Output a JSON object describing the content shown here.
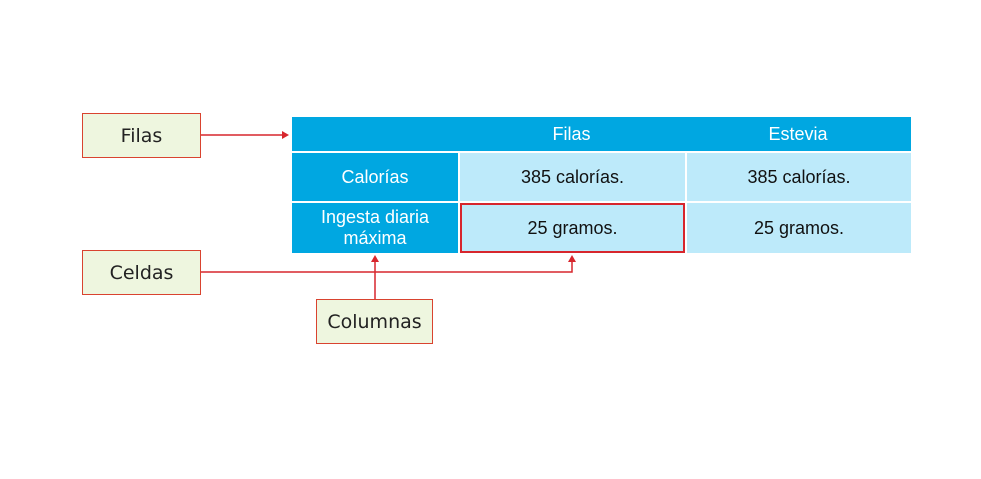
{
  "callouts": {
    "rows_label": "Filas",
    "cells_label": "Celdas",
    "columns_label": "Columnas"
  },
  "table": {
    "header": [
      "",
      "Filas",
      "Estevia"
    ],
    "rows": [
      {
        "label": "Calorías",
        "values": [
          "385 calorías.",
          "385 calorías."
        ]
      },
      {
        "label_lines": [
          "Ingesta diaria",
          "máxima"
        ],
        "values": [
          "25 gramos.",
          "25 gramos."
        ]
      }
    ],
    "highlighted_cell": {
      "row": 1,
      "col": 0
    }
  },
  "colors": {
    "header_bg": "#00a7e1",
    "cell_bg": "#bdeafa",
    "callout_bg": "#eef6df",
    "accent_red": "#d7262d"
  }
}
